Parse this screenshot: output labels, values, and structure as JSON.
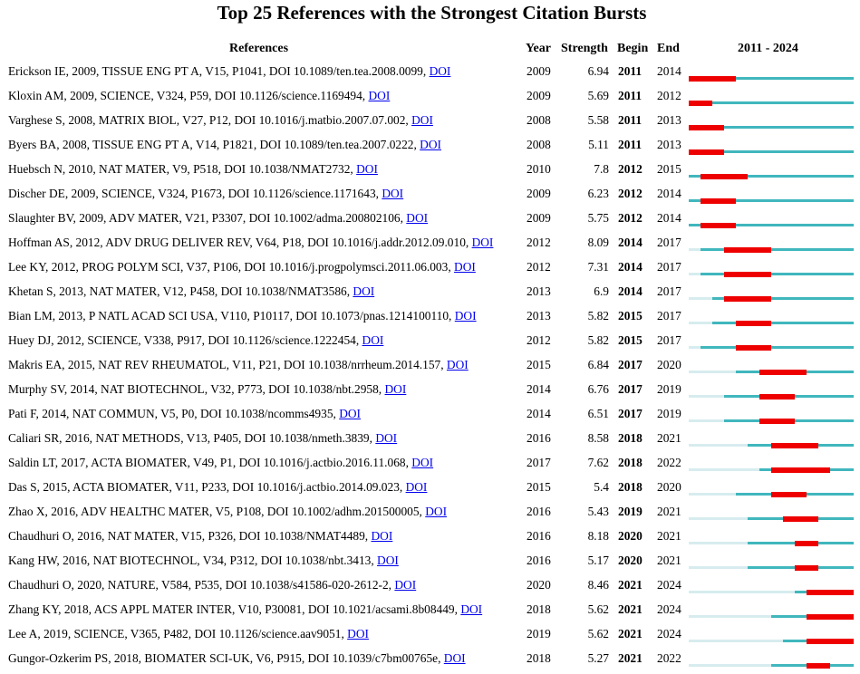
{
  "colors": {
    "burst": "#ee0000",
    "active": "#40b7bd",
    "before": "#d7ecef",
    "link": "#0000ee"
  },
  "chart_data": {
    "type": "table",
    "title": "Top 25 References with the Strongest Citation Bursts",
    "columns": [
      "References",
      "Year",
      "Strength",
      "Begin",
      "End",
      "2011 - 2024"
    ],
    "range": [
      2011,
      2024
    ],
    "rows": [
      {
        "reference": "Erickson IE, 2009, TISSUE ENG PT A, V15, P1041, DOI 10.1089/ten.tea.2008.0099,",
        "link": "DOI",
        "year": 2009,
        "strength": "6.94",
        "begin": 2011,
        "end": 2014
      },
      {
        "reference": "Kloxin AM, 2009, SCIENCE, V324, P59, DOI 10.1126/science.1169494,",
        "link": "DOI",
        "year": 2009,
        "strength": "5.69",
        "begin": 2011,
        "end": 2012
      },
      {
        "reference": "Varghese S, 2008, MATRIX BIOL, V27, P12, DOI 10.1016/j.matbio.2007.07.002,",
        "link": "DOI",
        "year": 2008,
        "strength": "5.58",
        "begin": 2011,
        "end": 2013
      },
      {
        "reference": "Byers BA, 2008, TISSUE ENG PT A, V14, P1821, DOI 10.1089/ten.tea.2007.0222,",
        "link": "DOI",
        "year": 2008,
        "strength": "5.11",
        "begin": 2011,
        "end": 2013
      },
      {
        "reference": "Huebsch N, 2010, NAT MATER, V9, P518, DOI 10.1038/NMAT2732,",
        "link": "DOI",
        "year": 2010,
        "strength": "7.8",
        "begin": 2012,
        "end": 2015
      },
      {
        "reference": "Discher DE, 2009, SCIENCE, V324, P1673, DOI 10.1126/science.1171643,",
        "link": "DOI",
        "year": 2009,
        "strength": "6.23",
        "begin": 2012,
        "end": 2014
      },
      {
        "reference": "Slaughter BV, 2009, ADV MATER, V21, P3307, DOI 10.1002/adma.200802106,",
        "link": "DOI",
        "year": 2009,
        "strength": "5.75",
        "begin": 2012,
        "end": 2014
      },
      {
        "reference": "Hoffman AS, 2012, ADV DRUG DELIVER REV, V64, P18, DOI 10.1016/j.addr.2012.09.010,",
        "link": "DOI",
        "year": 2012,
        "strength": "8.09",
        "begin": 2014,
        "end": 2017
      },
      {
        "reference": "Lee KY, 2012, PROG POLYM SCI, V37, P106, DOI 10.1016/j.progpolymsci.2011.06.003,",
        "link": "DOI",
        "year": 2012,
        "strength": "7.31",
        "begin": 2014,
        "end": 2017
      },
      {
        "reference": "Khetan S, 2013, NAT MATER, V12, P458, DOI 10.1038/NMAT3586,",
        "link": "DOI",
        "year": 2013,
        "strength": "6.9",
        "begin": 2014,
        "end": 2017
      },
      {
        "reference": "Bian LM, 2013, P NATL ACAD SCI USA, V110, P10117, DOI 10.1073/pnas.1214100110,",
        "link": "DOI",
        "year": 2013,
        "strength": "5.82",
        "begin": 2015,
        "end": 2017
      },
      {
        "reference": "Huey DJ, 2012, SCIENCE, V338, P917, DOI 10.1126/science.1222454,",
        "link": "DOI",
        "year": 2012,
        "strength": "5.82",
        "begin": 2015,
        "end": 2017
      },
      {
        "reference": "Makris EA, 2015, NAT REV RHEUMATOL, V11, P21, DOI 10.1038/nrrheum.2014.157,",
        "link": "DOI",
        "year": 2015,
        "strength": "6.84",
        "begin": 2017,
        "end": 2020
      },
      {
        "reference": "Murphy SV, 2014, NAT BIOTECHNOL, V32, P773, DOI 10.1038/nbt.2958,",
        "link": "DOI",
        "year": 2014,
        "strength": "6.76",
        "begin": 2017,
        "end": 2019
      },
      {
        "reference": "Pati F, 2014, NAT COMMUN, V5, P0, DOI 10.1038/ncomms4935,",
        "link": "DOI",
        "year": 2014,
        "strength": "6.51",
        "begin": 2017,
        "end": 2019
      },
      {
        "reference": "Caliari SR, 2016, NAT METHODS, V13, P405, DOI 10.1038/nmeth.3839,",
        "link": "DOI",
        "year": 2016,
        "strength": "8.58",
        "begin": 2018,
        "end": 2021
      },
      {
        "reference": "Saldin LT, 2017, ACTA BIOMATER, V49, P1, DOI 10.1016/j.actbio.2016.11.068,",
        "link": "DOI",
        "year": 2017,
        "strength": "7.62",
        "begin": 2018,
        "end": 2022
      },
      {
        "reference": "Das S, 2015, ACTA BIOMATER, V11, P233, DOI 10.1016/j.actbio.2014.09.023,",
        "link": "DOI",
        "year": 2015,
        "strength": "5.4",
        "begin": 2018,
        "end": 2020
      },
      {
        "reference": "Zhao X, 2016, ADV HEALTHC MATER, V5, P108, DOI 10.1002/adhm.201500005,",
        "link": "DOI",
        "year": 2016,
        "strength": "5.43",
        "begin": 2019,
        "end": 2021
      },
      {
        "reference": "Chaudhuri O, 2016, NAT MATER, V15, P326, DOI 10.1038/NMAT4489,",
        "link": "DOI",
        "year": 2016,
        "strength": "8.18",
        "begin": 2020,
        "end": 2021
      },
      {
        "reference": "Kang HW, 2016, NAT BIOTECHNOL, V34, P312, DOI 10.1038/nbt.3413,",
        "link": "DOI",
        "year": 2016,
        "strength": "5.17",
        "begin": 2020,
        "end": 2021
      },
      {
        "reference": "Chaudhuri O, 2020, NATURE, V584, P535, DOI 10.1038/s41586-020-2612-2,",
        "link": "DOI",
        "year": 2020,
        "strength": "8.46",
        "begin": 2021,
        "end": 2024
      },
      {
        "reference": "Zhang KY, 2018, ACS APPL MATER INTER, V10, P30081, DOI 10.1021/acsami.8b08449,",
        "link": "DOI",
        "year": 2018,
        "strength": "5.62",
        "begin": 2021,
        "end": 2024
      },
      {
        "reference": "Lee A, 2019, SCIENCE, V365, P482, DOI 10.1126/science.aav9051,",
        "link": "DOI",
        "year": 2019,
        "strength": "5.62",
        "begin": 2021,
        "end": 2024
      },
      {
        "reference": "Gungor-Ozkerim PS, 2018, BIOMATER SCI-UK, V6, P915, DOI 10.1039/c7bm00765e,",
        "link": "DOI",
        "year": 2018,
        "strength": "5.27",
        "begin": 2021,
        "end": 2022
      }
    ]
  }
}
